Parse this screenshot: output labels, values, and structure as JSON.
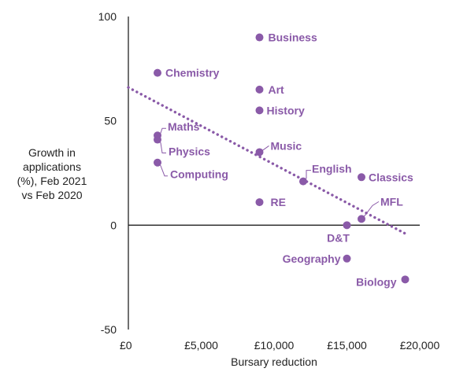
{
  "chart_data": {
    "type": "scatter",
    "xlabel": "Bursary reduction",
    "ylabel_lines": [
      "Growth in",
      "applications",
      "(%), Feb 2021",
      "vs Feb 2020"
    ],
    "xlim": [
      0,
      20000
    ],
    "ylim": [
      -50,
      100
    ],
    "x_ticks": [
      {
        "value": 0,
        "label": "£0"
      },
      {
        "value": 5000,
        "label": "£5,000"
      },
      {
        "value": 10000,
        "label": "£10,000"
      },
      {
        "value": 15000,
        "label": "£15,000"
      },
      {
        "value": 20000,
        "label": "£20,000"
      }
    ],
    "y_ticks": [
      {
        "value": 100,
        "label": "100"
      },
      {
        "value": 50,
        "label": "50"
      },
      {
        "value": 0,
        "label": "0"
      },
      {
        "value": -50,
        "label": "-50"
      }
    ],
    "trendline": {
      "x": [
        0,
        19000
      ],
      "y": [
        66,
        -4
      ]
    },
    "points": [
      {
        "label": "Chemistry",
        "x": 2000,
        "y": 73
      },
      {
        "label": "Maths",
        "x": 2000,
        "y": 43
      },
      {
        "label": "Physics",
        "x": 2000,
        "y": 41
      },
      {
        "label": "Computing",
        "x": 2000,
        "y": 30
      },
      {
        "label": "Business",
        "x": 9000,
        "y": 90
      },
      {
        "label": "Art",
        "x": 9000,
        "y": 65
      },
      {
        "label": "History",
        "x": 9000,
        "y": 55
      },
      {
        "label": "Music",
        "x": 9000,
        "y": 35
      },
      {
        "label": "RE",
        "x": 9000,
        "y": 11
      },
      {
        "label": "English",
        "x": 12000,
        "y": 21
      },
      {
        "label": "Classics",
        "x": 16000,
        "y": 23
      },
      {
        "label": "MFL",
        "x": 16000,
        "y": 3
      },
      {
        "label": "D&T",
        "x": 15000,
        "y": 0
      },
      {
        "label": "Geography",
        "x": 15000,
        "y": -16
      },
      {
        "label": "Biology",
        "x": 19000,
        "y": -26
      }
    ],
    "colors": {
      "points": "#8a5aa8",
      "axis": "#222222"
    }
  }
}
